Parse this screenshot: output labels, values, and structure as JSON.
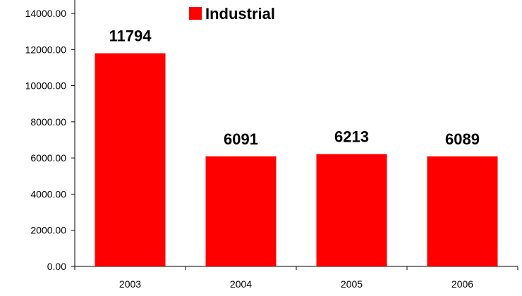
{
  "chart_data": {
    "type": "bar",
    "categories": [
      "2003",
      "2004",
      "2005",
      "2006"
    ],
    "series": [
      {
        "name": "Industrial",
        "color": "#ff0000",
        "values": [
          11794,
          6091,
          6213,
          6089
        ]
      }
    ],
    "data_labels": [
      "11794",
      "6091",
      "6213",
      "6089"
    ],
    "y_ticks": [
      0,
      2000,
      4000,
      6000,
      8000,
      10000,
      12000,
      14000
    ],
    "y_tick_labels": [
      "0.00",
      "2000.00",
      "4000.00",
      "6000.00",
      "8000.00",
      "10000.00",
      "12000.00",
      "14000.00"
    ],
    "ylim": [
      0,
      14000
    ],
    "grid": false,
    "legend": {
      "position": "top",
      "label": "Industrial"
    },
    "title": "",
    "xlabel": "",
    "ylabel": ""
  }
}
